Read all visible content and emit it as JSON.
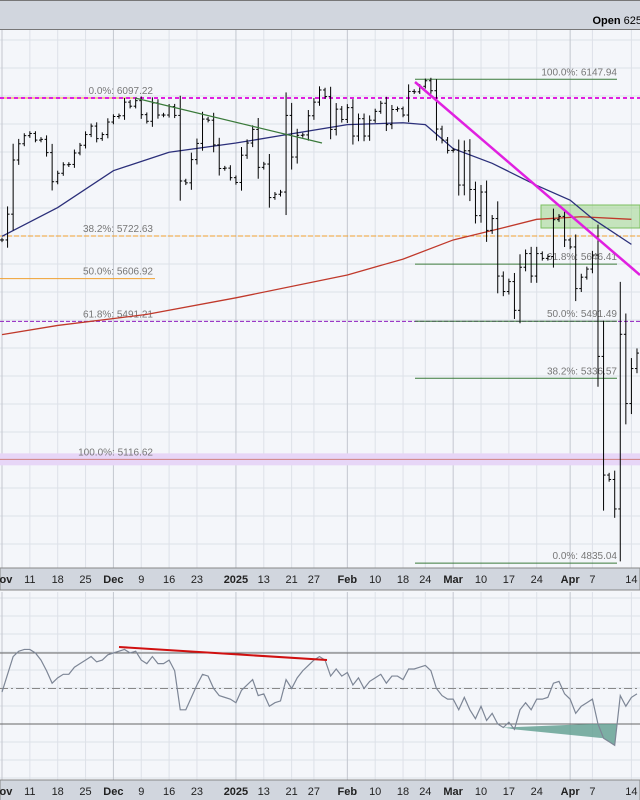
{
  "header": {
    "open_label": "Open",
    "open_value": "625"
  },
  "colors": {
    "bars": "#000000",
    "ma50": "#2b2f7a",
    "ma200": "#c0392b",
    "fib_left": "#f0a030",
    "fib_right": "#3a7a3a",
    "magenta": "#e020e0",
    "rsi": "#7d8696",
    "rsi_trend": "#d01010",
    "zone": "#9fd68a"
  },
  "chart_data": {
    "type": "ohlc",
    "ylim": [
      4780,
      6220
    ],
    "x_ticks": [
      {
        "i": 0,
        "label": "Nov",
        "bold": true
      },
      {
        "i": 5,
        "label": "11"
      },
      {
        "i": 10,
        "label": "18"
      },
      {
        "i": 15,
        "label": "25"
      },
      {
        "i": 20,
        "label": "Dec",
        "bold": true
      },
      {
        "i": 25,
        "label": "9"
      },
      {
        "i": 30,
        "label": "16"
      },
      {
        "i": 35,
        "label": "23"
      },
      {
        "i": 42,
        "label": "2025",
        "bold": true
      },
      {
        "i": 47,
        "label": "13"
      },
      {
        "i": 52,
        "label": "21"
      },
      {
        "i": 56,
        "label": "27"
      },
      {
        "i": 62,
        "label": "Feb",
        "bold": true
      },
      {
        "i": 67,
        "label": "10"
      },
      {
        "i": 72,
        "label": "18"
      },
      {
        "i": 76,
        "label": "24"
      },
      {
        "i": 81,
        "label": "Mar",
        "bold": true
      },
      {
        "i": 86,
        "label": "10"
      },
      {
        "i": 91,
        "label": "17"
      },
      {
        "i": 96,
        "label": "24"
      },
      {
        "i": 102,
        "label": "Apr",
        "bold": true
      },
      {
        "i": 106,
        "label": "7"
      },
      {
        "i": 113,
        "label": "14"
      }
    ],
    "closes": [
      5712,
      5782,
      5929,
      5973,
      5995,
      6001,
      5983,
      5985,
      5949,
      5870,
      5893,
      5916,
      5917,
      5948,
      5969,
      5998,
      6021,
      5987,
      5998,
      6032,
      6047,
      6049,
      6086,
      6075,
      6090,
      6052,
      6034,
      6084,
      6051,
      6051,
      6074,
      6050,
      5872,
      5867,
      5930,
      5974,
      6040,
      6037,
      5970,
      5906,
      5907,
      5881,
      5868,
      5942,
      5975,
      6012,
      5909,
      5918,
      5827,
      5836,
      5842,
      6050,
      5937,
      5996,
      5997,
      6049,
      6086,
      6119,
      6101,
      6012,
      6067,
      6039,
      6071,
      5994,
      6041,
      5994,
      6037,
      6061,
      6083,
      6025,
      6066,
      6068,
      6051,
      6115,
      6114,
      6129,
      6144,
      6117,
      6013,
      5983,
      5955,
      5956,
      5861,
      5954,
      5849,
      5778,
      5842,
      5738,
      5770,
      5614,
      5572,
      5599,
      5521,
      5638,
      5675,
      5614,
      5675,
      5662,
      5667,
      5767,
      5776,
      5712,
      5693,
      5580,
      5611,
      5633,
      5671,
      5396,
      5074,
      5062,
      4982,
      5456,
      5268,
      5363,
      5405
    ],
    "ma50": [
      [
        0,
        5722
      ],
      [
        10,
        5800
      ],
      [
        20,
        5900
      ],
      [
        30,
        5950
      ],
      [
        42,
        5975
      ],
      [
        50,
        5995
      ],
      [
        62,
        6025
      ],
      [
        72,
        6030
      ],
      [
        76,
        6025
      ],
      [
        81,
        5960
      ],
      [
        88,
        5920
      ],
      [
        96,
        5860
      ],
      [
        102,
        5820
      ],
      [
        106,
        5770
      ],
      [
        113,
        5700
      ]
    ],
    "ma200": [
      [
        0,
        5455
      ],
      [
        10,
        5480
      ],
      [
        26,
        5510
      ],
      [
        42,
        5555
      ],
      [
        62,
        5617
      ],
      [
        72,
        5660
      ],
      [
        81,
        5712
      ],
      [
        90,
        5745
      ],
      [
        96,
        5768
      ],
      [
        104,
        5775
      ],
      [
        113,
        5768
      ]
    ],
    "fib_left": [
      {
        "label": "0.0%: 6097.22",
        "value": 6097.22
      },
      {
        "label": "38.2%: 5722.63",
        "value": 5722.63
      },
      {
        "label": "50.0%: 5606.92",
        "value": 5606.92
      },
      {
        "label": "61.8%: 5491.21",
        "value": 5491.21
      },
      {
        "label": "100.0%: 5116.62",
        "value": 5116.62
      }
    ],
    "fib_right": [
      {
        "label": "100.0%: 6147.94",
        "value": 6147.94
      },
      {
        "label": "61.8%: 5646.41",
        "value": 5646.41
      },
      {
        "label": "50.0%: 5491.49",
        "value": 5491.49
      },
      {
        "label": "38.2%: 5336.57",
        "value": 5336.57
      },
      {
        "label": "0.0%: 4835.04",
        "value": 4835.04
      }
    ],
    "rsi": [
      48,
      58,
      68,
      71,
      72,
      72,
      70,
      66,
      60,
      53,
      56,
      58,
      58,
      62,
      64,
      66,
      68,
      65,
      66,
      69,
      70,
      71,
      72,
      70,
      71,
      66,
      64,
      68,
      64,
      64,
      66,
      60,
      38,
      38,
      45,
      52,
      58,
      57,
      50,
      46,
      45,
      44,
      42,
      49,
      52,
      55,
      46,
      47,
      40,
      42,
      43,
      55,
      50,
      56,
      60,
      63,
      66,
      68,
      66,
      57,
      61,
      57,
      59,
      52,
      56,
      50,
      54,
      56,
      58,
      53,
      57,
      57,
      55,
      61,
      61,
      62,
      63,
      60,
      50,
      46,
      44,
      44,
      38,
      45,
      38,
      33,
      40,
      32,
      36,
      30,
      28,
      31,
      27,
      38,
      42,
      38,
      44,
      44,
      45,
      53,
      54,
      47,
      44,
      36,
      40,
      42,
      44,
      30,
      22,
      20,
      18,
      46,
      40,
      45,
      47
    ],
    "rsi_levels": [
      70,
      50,
      30
    ]
  }
}
